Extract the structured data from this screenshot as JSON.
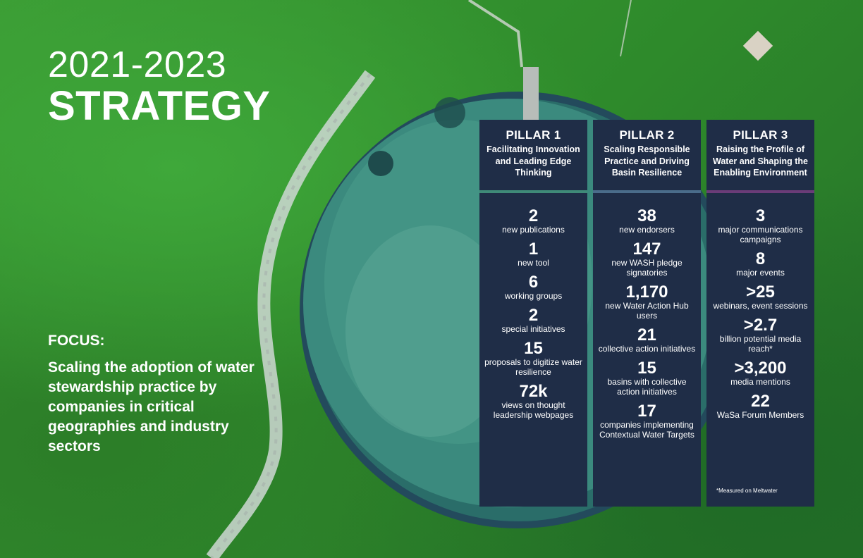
{
  "title": {
    "years": "2021-2023",
    "word": "STRATEGY"
  },
  "focus": {
    "label": "FOCUS:",
    "text": "Scaling the adoption of water stewardship practice by companies in critical geographies and industry sectors"
  },
  "pillars": [
    {
      "name": "PILLAR 1",
      "title": "Facilitating Innovation and Leading Edge Thinking",
      "accent": "#3f8a78",
      "stats": [
        {
          "num": "2",
          "label": "new publications"
        },
        {
          "num": "1",
          "label": "new tool"
        },
        {
          "num": "6",
          "label": "working groups"
        },
        {
          "num": "2",
          "label": "special initiatives"
        },
        {
          "num": "15",
          "label": "proposals to digitize water resilience"
        },
        {
          "num": "72k",
          "label": "views on thought leadership webpages"
        }
      ]
    },
    {
      "name": "PILLAR 2",
      "title": "Scaling Responsible Practice and Driving Basin Resilience",
      "accent": "#4a6c8a",
      "stats": [
        {
          "num": "38",
          "label": "new endorsers"
        },
        {
          "num": "147",
          "label": "new WASH pledge signatories"
        },
        {
          "num": "1,170",
          "label": "new Water Action Hub users"
        },
        {
          "num": "21",
          "label": "collective action initiatives"
        },
        {
          "num": "15",
          "label": "basins with collective action initiatives"
        },
        {
          "num": "17",
          "label": "companies implementing Contextual Water Targets"
        }
      ]
    },
    {
      "name": "PILLAR 3",
      "title": "Raising the Profile of Water and Shaping the Enabling Environment",
      "accent": "#6a3c78",
      "stats": [
        {
          "num": "3",
          "label": "major communications campaigns"
        },
        {
          "num": "8",
          "label": "major events"
        },
        {
          "num": ">25",
          "label": "webinars, event sessions"
        },
        {
          "num": ">2.7",
          "label": "billion potential media reach*"
        },
        {
          "num": ">3,200",
          "label": "media mentions"
        },
        {
          "num": "22",
          "label": "WaSa Forum Members"
        }
      ],
      "footnote": "*Measured on Meltwater"
    }
  ]
}
